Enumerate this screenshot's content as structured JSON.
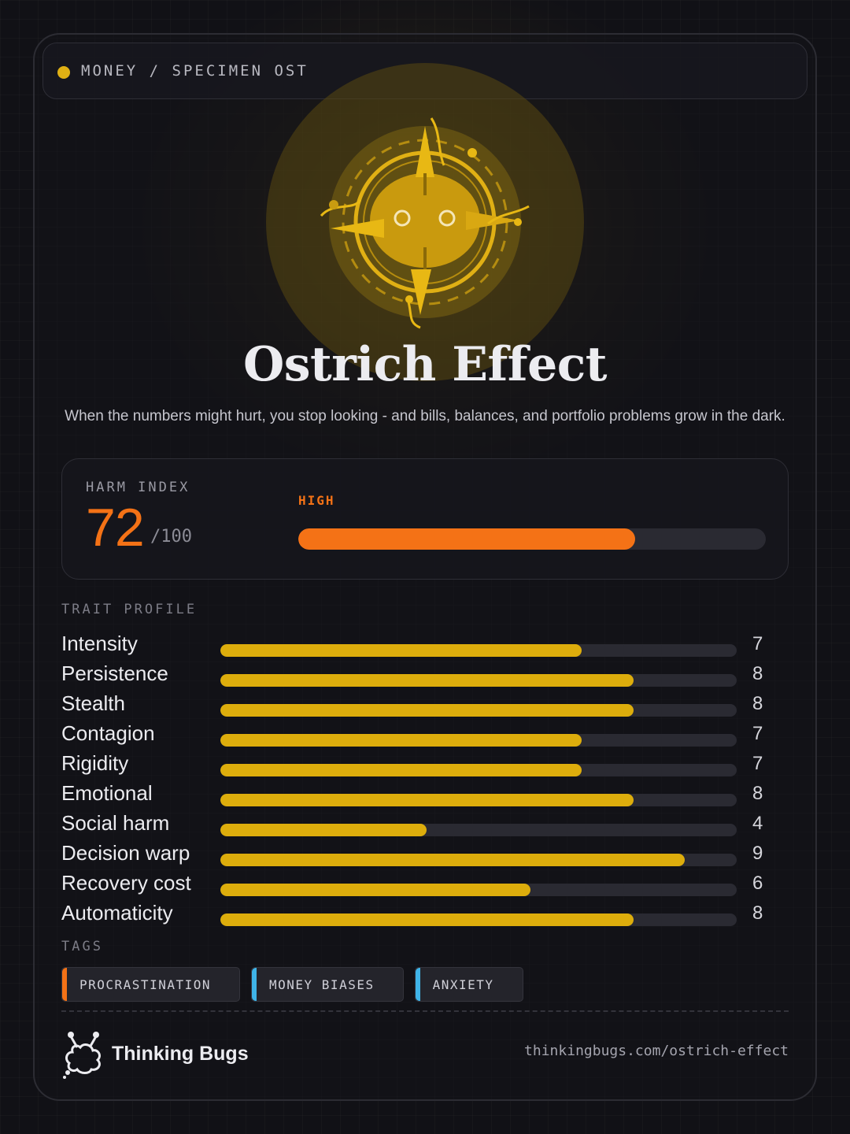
{
  "header": {
    "breadcrumb": "MONEY / SPECIMEN OST",
    "accent": "#e0b014"
  },
  "emblem": {
    "icon": "ostrich-compass-bug-icon"
  },
  "title": "Ostrich Effect",
  "subtitle": "When the numbers might hurt, you stop looking - and bills, balances, and portfolio problems grow in the dark.",
  "harm": {
    "label": "HARM INDEX",
    "score": "72",
    "out_of": "/100",
    "level": "HIGH",
    "value": 72,
    "max": 100,
    "color": "#f47216"
  },
  "traits_label": "TRAIT PROFILE",
  "trait_max": 10,
  "trait_color": "#ddad0c",
  "traits": [
    {
      "name": "Intensity",
      "value": "7"
    },
    {
      "name": "Persistence",
      "value": "8"
    },
    {
      "name": "Stealth",
      "value": "8"
    },
    {
      "name": "Contagion",
      "value": "7"
    },
    {
      "name": "Rigidity",
      "value": "7"
    },
    {
      "name": "Emotional",
      "value": "8"
    },
    {
      "name": "Social harm",
      "value": "4"
    },
    {
      "name": "Decision warp",
      "value": "9"
    },
    {
      "name": "Recovery cost",
      "value": "6"
    },
    {
      "name": "Automaticity",
      "value": "8"
    }
  ],
  "tags_label": "TAGS",
  "tags": [
    {
      "label": "PROCRASTINATION",
      "color": "#f47216"
    },
    {
      "label": "MONEY BIASES",
      "color": "#3fb4e8"
    },
    {
      "label": "ANXIETY",
      "color": "#3fb4e8"
    }
  ],
  "footer": {
    "brand": "Thinking Bugs",
    "logo_icon": "thinking-bugs-logo-icon",
    "url": "thinkingbugs.com/ostrich-effect"
  }
}
